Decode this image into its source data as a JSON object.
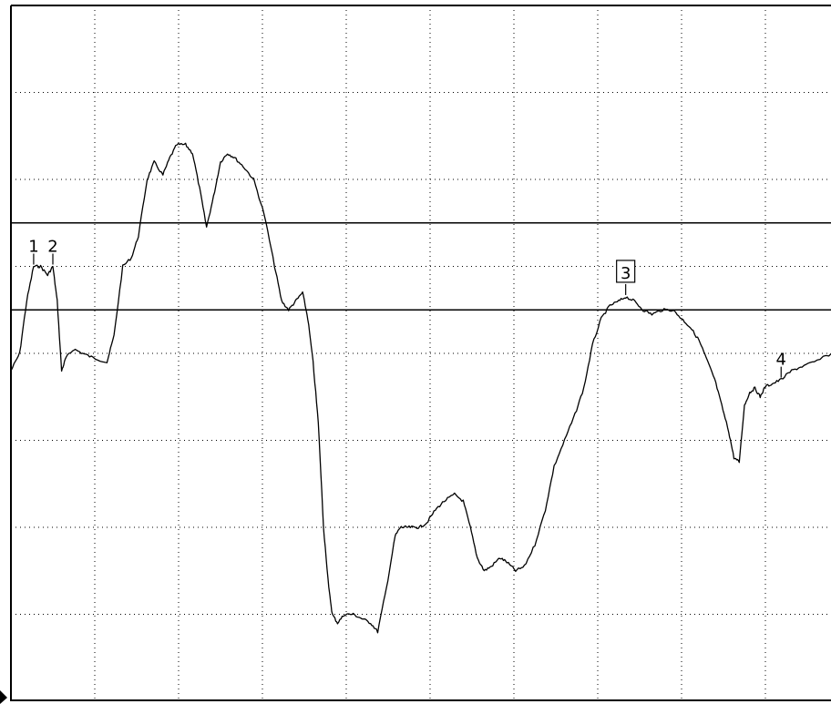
{
  "chart_data": {
    "type": "line",
    "xlim": [
      0,
      9.6
    ],
    "ylim": [
      0,
      8
    ],
    "grid": true,
    "grid_divisions_x": 10,
    "grid_divisions_y": 8,
    "reference_lines": [
      5.5,
      4.5
    ],
    "series": [
      {
        "color": "#000000",
        "points": [
          [
            0.0,
            3.8
          ],
          [
            0.1,
            4.0
          ],
          [
            0.18,
            4.6
          ],
          [
            0.26,
            5.0
          ],
          [
            0.34,
            5.0
          ],
          [
            0.42,
            4.9
          ],
          [
            0.48,
            5.0
          ],
          [
            0.53,
            4.6
          ],
          [
            0.58,
            3.8
          ],
          [
            0.63,
            3.95
          ],
          [
            0.72,
            4.05
          ],
          [
            0.82,
            4.0
          ],
          [
            0.94,
            3.95
          ],
          [
            1.1,
            3.9
          ],
          [
            1.18,
            4.2
          ],
          [
            1.28,
            5.0
          ],
          [
            1.38,
            5.1
          ],
          [
            1.46,
            5.35
          ],
          [
            1.56,
            6.0
          ],
          [
            1.64,
            6.2
          ],
          [
            1.74,
            6.05
          ],
          [
            1.82,
            6.25
          ],
          [
            1.9,
            6.4
          ],
          [
            2.0,
            6.4
          ],
          [
            2.08,
            6.3
          ],
          [
            2.16,
            5.9
          ],
          [
            2.24,
            5.45
          ],
          [
            2.32,
            5.8
          ],
          [
            2.4,
            6.2
          ],
          [
            2.48,
            6.3
          ],
          [
            2.56,
            6.25
          ],
          [
            2.66,
            6.15
          ],
          [
            2.78,
            6.0
          ],
          [
            2.9,
            5.6
          ],
          [
            3.02,
            5.0
          ],
          [
            3.1,
            4.6
          ],
          [
            3.18,
            4.5
          ],
          [
            3.26,
            4.6
          ],
          [
            3.34,
            4.7
          ],
          [
            3.4,
            4.4
          ],
          [
            3.46,
            3.9
          ],
          [
            3.52,
            3.2
          ],
          [
            3.58,
            2.0
          ],
          [
            3.64,
            1.3
          ],
          [
            3.68,
            1.0
          ],
          [
            3.74,
            0.9
          ],
          [
            3.82,
            1.0
          ],
          [
            3.92,
            1.0
          ],
          [
            4.02,
            0.95
          ],
          [
            4.12,
            0.9
          ],
          [
            4.2,
            0.8
          ],
          [
            4.3,
            1.3
          ],
          [
            4.4,
            1.9
          ],
          [
            4.46,
            2.0
          ],
          [
            4.52,
            2.0
          ],
          [
            4.6,
            2.0
          ],
          [
            4.68,
            2.0
          ],
          [
            4.76,
            2.05
          ],
          [
            4.86,
            2.2
          ],
          [
            4.96,
            2.3
          ],
          [
            5.08,
            2.38
          ],
          [
            5.18,
            2.3
          ],
          [
            5.26,
            2.0
          ],
          [
            5.34,
            1.65
          ],
          [
            5.42,
            1.5
          ],
          [
            5.5,
            1.55
          ],
          [
            5.6,
            1.65
          ],
          [
            5.68,
            1.6
          ],
          [
            5.78,
            1.5
          ],
          [
            5.88,
            1.55
          ],
          [
            6.0,
            1.8
          ],
          [
            6.12,
            2.2
          ],
          [
            6.22,
            2.7
          ],
          [
            6.34,
            3.0
          ],
          [
            6.46,
            3.3
          ],
          [
            6.56,
            3.6
          ],
          [
            6.66,
            4.1
          ],
          [
            6.76,
            4.4
          ],
          [
            6.86,
            4.55
          ],
          [
            6.96,
            4.6
          ],
          [
            7.04,
            4.65
          ],
          [
            7.14,
            4.6
          ],
          [
            7.24,
            4.5
          ],
          [
            7.34,
            4.45
          ],
          [
            7.46,
            4.5
          ],
          [
            7.58,
            4.5
          ],
          [
            7.68,
            4.4
          ],
          [
            7.78,
            4.3
          ],
          [
            7.88,
            4.15
          ],
          [
            7.96,
            3.95
          ],
          [
            8.06,
            3.7
          ],
          [
            8.14,
            3.4
          ],
          [
            8.22,
            3.1
          ],
          [
            8.28,
            2.8
          ],
          [
            8.34,
            2.75
          ],
          [
            8.4,
            3.4
          ],
          [
            8.46,
            3.55
          ],
          [
            8.52,
            3.6
          ],
          [
            8.58,
            3.5
          ],
          [
            8.64,
            3.62
          ],
          [
            8.72,
            3.65
          ],
          [
            8.82,
            3.7
          ],
          [
            8.94,
            3.8
          ],
          [
            9.06,
            3.85
          ],
          [
            9.2,
            3.9
          ],
          [
            9.4,
            4.0
          ],
          [
            9.6,
            4.05
          ]
        ]
      }
    ],
    "markers": [
      {
        "label": "1",
        "x": 0.26,
        "y": 5.0,
        "boxed": false
      },
      {
        "label": "2",
        "x": 0.48,
        "y": 5.0,
        "boxed": false
      },
      {
        "label": "3",
        "x": 7.04,
        "y": 4.65,
        "boxed": true
      },
      {
        "label": "4",
        "x": 8.82,
        "y": 3.7,
        "boxed": false
      }
    ]
  }
}
